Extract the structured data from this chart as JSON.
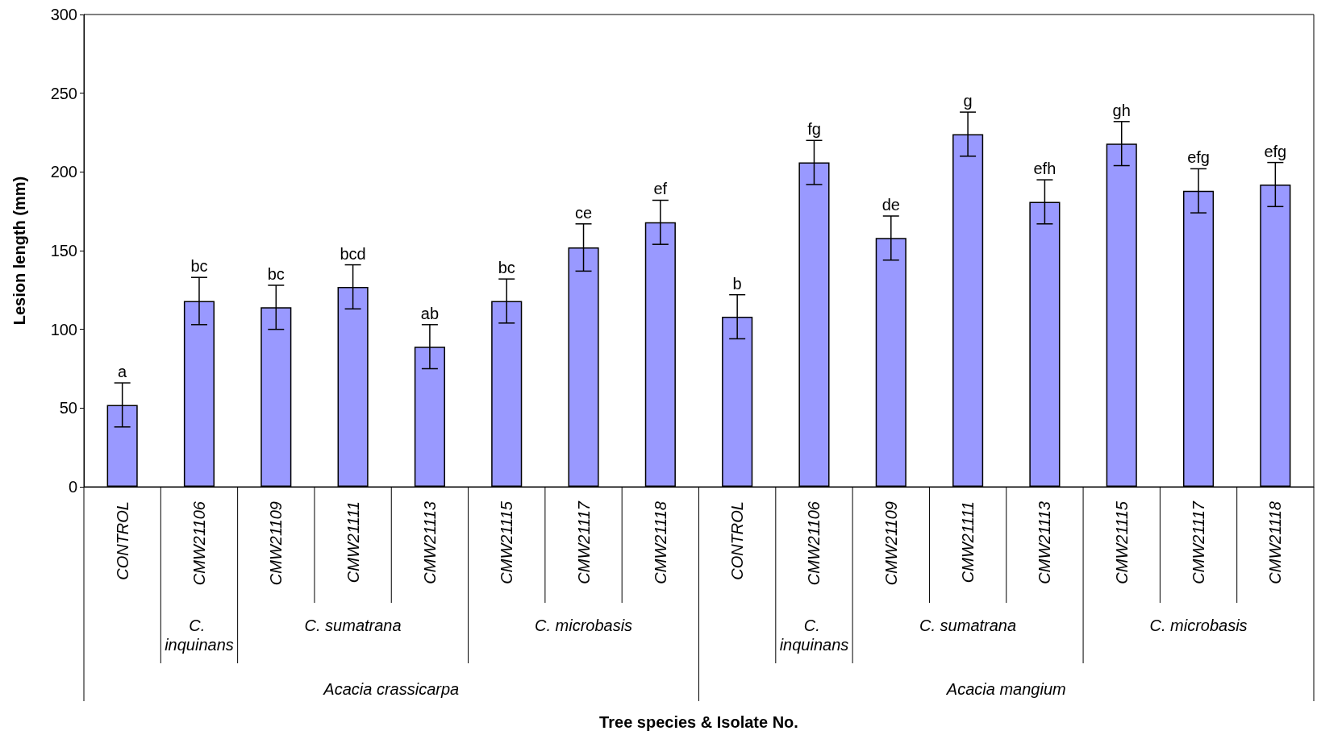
{
  "chart_data": {
    "type": "bar",
    "ylabel": "Lesion length (mm)",
    "categories": [
      "CONTROL",
      "CMW21106",
      "CMW21109",
      "CMW21111",
      "CMW21113",
      "CMW21115",
      "CMW21117",
      "CMW21118",
      "CONTROL",
      "CMW21106",
      "CMW21109",
      "CMW21111",
      "CMW21113",
      "CMW21115",
      "CMW21117",
      "CMW21118"
    ],
    "values": [
      52,
      118,
      114,
      127,
      89,
      118,
      152,
      168,
      108,
      206,
      158,
      224,
      181,
      218,
      188,
      192
    ],
    "errors": [
      14,
      15,
      14,
      14,
      14,
      14,
      15,
      14,
      14,
      14,
      14,
      14,
      14,
      14,
      14,
      14
    ],
    "value_labels": [
      "a",
      "bc",
      "bc",
      "bcd",
      "ab",
      "bc",
      "ce",
      "ef",
      "b",
      "fg",
      "de",
      "g",
      "efh",
      "gh",
      "efg",
      "efg"
    ],
    "color": "#9999ff",
    "ylim": [
      0,
      300
    ],
    "yticks": [
      0,
      50,
      100,
      150,
      200,
      250,
      300
    ],
    "grid": false,
    "annotations": [
      "C. inquinans",
      "C. sumatrana",
      "C. microbasis",
      "C. inquinans",
      "C. sumatrana",
      "C. microbasis",
      "Acacia crassicarpa",
      "Acacia mangium",
      "Tree species & Isolate No."
    ]
  }
}
